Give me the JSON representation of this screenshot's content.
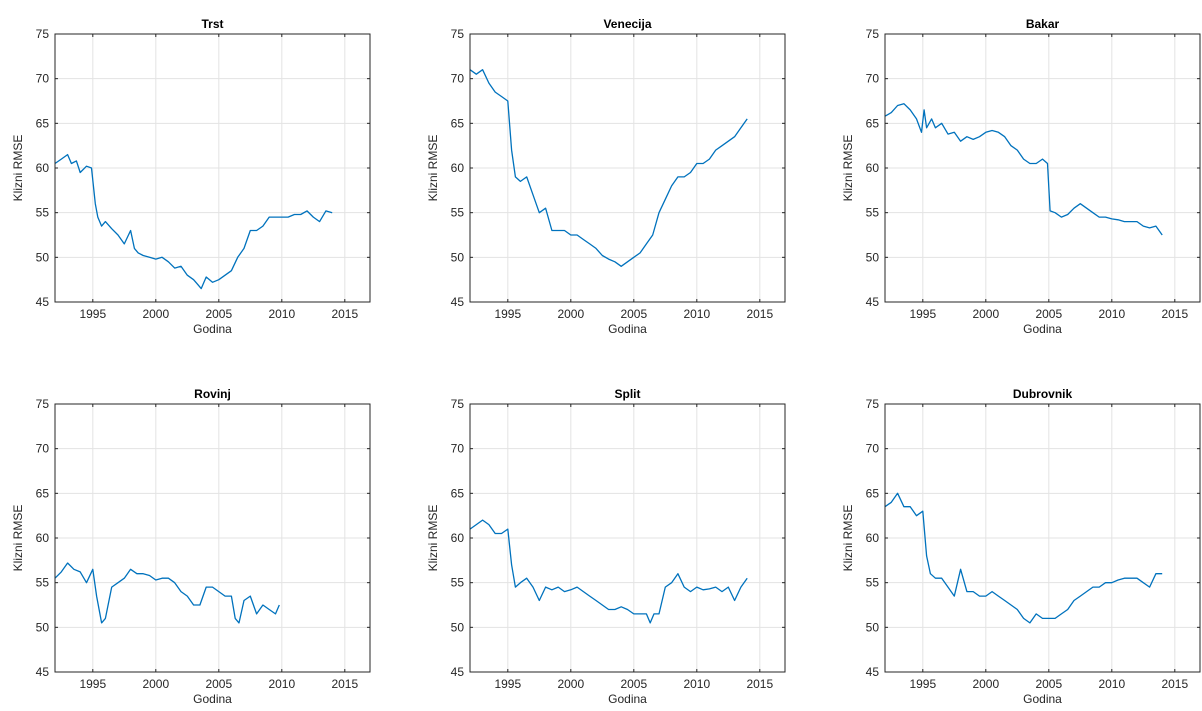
{
  "chart_data": [
    {
      "type": "line",
      "title": "Trst",
      "xlabel": "Godina",
      "ylabel": "Klizni RMSE",
      "xlim": [
        1992,
        2017
      ],
      "ylim": [
        45,
        75
      ],
      "xticks": [
        1995,
        2000,
        2005,
        2010,
        2015
      ],
      "yticks": [
        45,
        50,
        55,
        60,
        65,
        70,
        75
      ],
      "grid": true,
      "color": "#0072BD",
      "series": [
        {
          "x": [
            1992,
            1992.5,
            1993,
            1993.3,
            1993.7,
            1994,
            1994.5,
            1994.9,
            1995.2,
            1995.4,
            1995.7,
            1996,
            1996.5,
            1997,
            1997.5,
            1998,
            1998.3,
            1998.6,
            1999,
            1999.5,
            2000,
            2000.5,
            2001,
            2001.5,
            2002,
            2002.5,
            2003,
            2003.3,
            2003.6,
            2004,
            2004.5,
            2005,
            2005.5,
            2006,
            2006.5,
            2007,
            2007.5,
            2008,
            2008.5,
            2009,
            2009.5,
            2010,
            2010.5,
            2011,
            2011.5,
            2012,
            2012.5,
            2013,
            2013.5,
            2014
          ],
          "y": [
            60.5,
            61,
            61.5,
            60.5,
            60.8,
            59.5,
            60.2,
            60,
            56,
            54.5,
            53.5,
            54,
            53.2,
            52.5,
            51.5,
            53,
            51,
            50.5,
            50.2,
            50,
            49.8,
            50,
            49.5,
            48.8,
            49,
            48,
            47.5,
            47,
            46.5,
            47.8,
            47.2,
            47.5,
            48,
            48.5,
            50,
            51,
            53,
            53,
            53.5,
            54.5,
            54.5,
            54.5,
            54.5,
            54.8,
            54.8,
            55.2,
            54.5,
            54,
            55.2,
            55
          ]
        }
      ]
    },
    {
      "type": "line",
      "title": "Venecija",
      "xlabel": "Godina",
      "ylabel": "Klizni RMSE",
      "xlim": [
        1992,
        2017
      ],
      "ylim": [
        45,
        75
      ],
      "xticks": [
        1995,
        2000,
        2005,
        2010,
        2015
      ],
      "yticks": [
        45,
        50,
        55,
        60,
        65,
        70,
        75
      ],
      "grid": true,
      "color": "#0072BD",
      "series": [
        {
          "x": [
            1992,
            1992.5,
            1993,
            1993.5,
            1994,
            1994.5,
            1995,
            1995.3,
            1995.6,
            1996,
            1996.5,
            1997,
            1997.5,
            1998,
            1998.5,
            1999,
            1999.5,
            2000,
            2000.5,
            2001,
            2001.5,
            2002,
            2002.5,
            2003,
            2003.5,
            2004,
            2004.5,
            2005,
            2005.5,
            2006,
            2006.5,
            2007,
            2007.5,
            2008,
            2008.5,
            2009,
            2009.5,
            2010,
            2010.5,
            2011,
            2011.5,
            2012,
            2012.5,
            2013,
            2013.5,
            2014
          ],
          "y": [
            71,
            70.5,
            71,
            69.5,
            68.5,
            68,
            67.5,
            62,
            59,
            58.5,
            59,
            57,
            55,
            55.5,
            53,
            53,
            53,
            52.5,
            52.5,
            52,
            51.5,
            51,
            50.2,
            49.8,
            49.5,
            49,
            49.5,
            50,
            50.5,
            51.5,
            52.5,
            55,
            56.5,
            58,
            59,
            59,
            59.5,
            60.5,
            60.5,
            61,
            62,
            62.5,
            63,
            63.5,
            64.5,
            65.5
          ]
        }
      ]
    },
    {
      "type": "line",
      "title": "Bakar",
      "xlabel": "Godina",
      "ylabel": "Klizni RMSE",
      "xlim": [
        1992,
        2017
      ],
      "ylim": [
        45,
        75
      ],
      "xticks": [
        1995,
        2000,
        2005,
        2010,
        2015
      ],
      "yticks": [
        45,
        50,
        55,
        60,
        65,
        70,
        75
      ],
      "grid": true,
      "color": "#0072BD",
      "series": [
        {
          "x": [
            1992,
            1992.5,
            1993,
            1993.5,
            1994,
            1994.5,
            1994.9,
            1995.1,
            1995.3,
            1995.7,
            1996,
            1996.5,
            1997,
            1997.5,
            1998,
            1998.5,
            1999,
            1999.5,
            2000,
            2000.5,
            2001,
            2001.5,
            2002,
            2002.5,
            2003,
            2003.5,
            2004,
            2004.5,
            2004.9,
            2005.1,
            2005.5,
            2006,
            2006.5,
            2007,
            2007.5,
            2008,
            2008.5,
            2009,
            2009.5,
            2010,
            2010.5,
            2011,
            2011.5,
            2012,
            2012.5,
            2013,
            2013.5,
            2014
          ],
          "y": [
            65.8,
            66.2,
            67,
            67.2,
            66.5,
            65.5,
            64,
            66.5,
            64.5,
            65.5,
            64.5,
            65,
            63.8,
            64,
            63,
            63.5,
            63.2,
            63.5,
            64,
            64.2,
            64,
            63.5,
            62.5,
            62,
            61,
            60.5,
            60.5,
            61,
            60.5,
            55.2,
            55,
            54.5,
            54.8,
            55.5,
            56,
            55.5,
            55,
            54.5,
            54.5,
            54.3,
            54.2,
            54,
            54,
            54,
            53.5,
            53.3,
            53.5,
            52.5
          ]
        }
      ]
    },
    {
      "type": "line",
      "title": "Rovinj",
      "xlabel": "Godina",
      "ylabel": "Klizni RMSE",
      "xlim": [
        1992,
        2017
      ],
      "ylim": [
        45,
        75
      ],
      "xticks": [
        1995,
        2000,
        2005,
        2010,
        2015
      ],
      "yticks": [
        45,
        50,
        55,
        60,
        65,
        70,
        75
      ],
      "grid": true,
      "color": "#0072BD",
      "series": [
        {
          "x": [
            1992,
            1992.5,
            1993,
            1993.5,
            1994,
            1994.5,
            1995,
            1995.3,
            1995.7,
            1996,
            1996.5,
            1997,
            1997.5,
            1998,
            1998.5,
            1999,
            1999.5,
            2000,
            2000.5,
            2001,
            2001.5,
            2002,
            2002.5,
            2003,
            2003.5,
            2004,
            2004.5,
            2005,
            2005.5,
            2006,
            2006.3,
            2006.6,
            2007,
            2007.5,
            2008,
            2008.5,
            2009,
            2009.5,
            2009.8
          ],
          "y": [
            55.5,
            56.2,
            57.2,
            56.5,
            56.2,
            55,
            56.5,
            53.5,
            50.5,
            51,
            54.5,
            55,
            55.5,
            56.5,
            56,
            56,
            55.8,
            55.3,
            55.5,
            55.5,
            55,
            54,
            53.5,
            52.5,
            52.5,
            54.5,
            54.5,
            54,
            53.5,
            53.5,
            51,
            50.5,
            53,
            53.5,
            51.5,
            52.5,
            52,
            51.5,
            52.5
          ]
        }
      ]
    },
    {
      "type": "line",
      "title": "Split",
      "xlabel": "Godina",
      "ylabel": "Klizni RMSE",
      "xlim": [
        1992,
        2017
      ],
      "ylim": [
        45,
        75
      ],
      "xticks": [
        1995,
        2000,
        2005,
        2010,
        2015
      ],
      "yticks": [
        45,
        50,
        55,
        60,
        65,
        70,
        75
      ],
      "grid": true,
      "color": "#0072BD",
      "series": [
        {
          "x": [
            1992,
            1992.5,
            1993,
            1993.5,
            1994,
            1994.5,
            1995,
            1995.3,
            1995.6,
            1996,
            1996.5,
            1997,
            1997.5,
            1998,
            1998.5,
            1999,
            1999.5,
            2000,
            2000.5,
            2001,
            2001.5,
            2002,
            2002.5,
            2003,
            2003.5,
            2004,
            2004.5,
            2005,
            2005.5,
            2006,
            2006.3,
            2006.6,
            2007,
            2007.5,
            2008,
            2008.5,
            2009,
            2009.5,
            2010,
            2010.5,
            2011,
            2011.5,
            2012,
            2012.5,
            2013,
            2013.5,
            2014
          ],
          "y": [
            61,
            61.5,
            62,
            61.5,
            60.5,
            60.5,
            61,
            57,
            54.5,
            55,
            55.5,
            54.5,
            53,
            54.5,
            54.2,
            54.5,
            54,
            54.2,
            54.5,
            54,
            53.5,
            53,
            52.5,
            52,
            52,
            52.3,
            52,
            51.5,
            51.5,
            51.5,
            50.5,
            51.5,
            51.5,
            54.5,
            55,
            56,
            54.5,
            54,
            54.5,
            54.2,
            54.3,
            54.5,
            54,
            54.5,
            53,
            54.5,
            55.5
          ]
        }
      ]
    },
    {
      "type": "line",
      "title": "Dubrovnik",
      "xlabel": "Godina",
      "ylabel": "Klizni RMSE",
      "xlim": [
        1992,
        2017
      ],
      "ylim": [
        45,
        75
      ],
      "xticks": [
        1995,
        2000,
        2005,
        2010,
        2015
      ],
      "yticks": [
        45,
        50,
        55,
        60,
        65,
        70,
        75
      ],
      "grid": true,
      "color": "#0072BD",
      "series": [
        {
          "x": [
            1992,
            1992.5,
            1993,
            1993.5,
            1994,
            1994.5,
            1995,
            1995.3,
            1995.6,
            1996,
            1996.5,
            1997,
            1997.5,
            1998,
            1998.5,
            1999,
            1999.5,
            2000,
            2000.5,
            2001,
            2001.5,
            2002,
            2002.5,
            2003,
            2003.5,
            2004,
            2004.5,
            2005,
            2005.5,
            2006,
            2006.5,
            2007,
            2007.5,
            2008,
            2008.5,
            2009,
            2009.5,
            2010,
            2010.5,
            2011,
            2011.5,
            2012,
            2012.5,
            2013,
            2013.5,
            2014
          ],
          "y": [
            63.5,
            64,
            65,
            63.5,
            63.5,
            62.5,
            63,
            58,
            56,
            55.5,
            55.5,
            54.5,
            53.5,
            56.5,
            54,
            54,
            53.5,
            53.5,
            54,
            53.5,
            53,
            52.5,
            52,
            51,
            50.5,
            51.5,
            51,
            51,
            51,
            51.5,
            52,
            53,
            53.5,
            54,
            54.5,
            54.5,
            55,
            55,
            55.3,
            55.5,
            55.5,
            55.5,
            55,
            54.5,
            56,
            56
          ]
        }
      ]
    }
  ]
}
